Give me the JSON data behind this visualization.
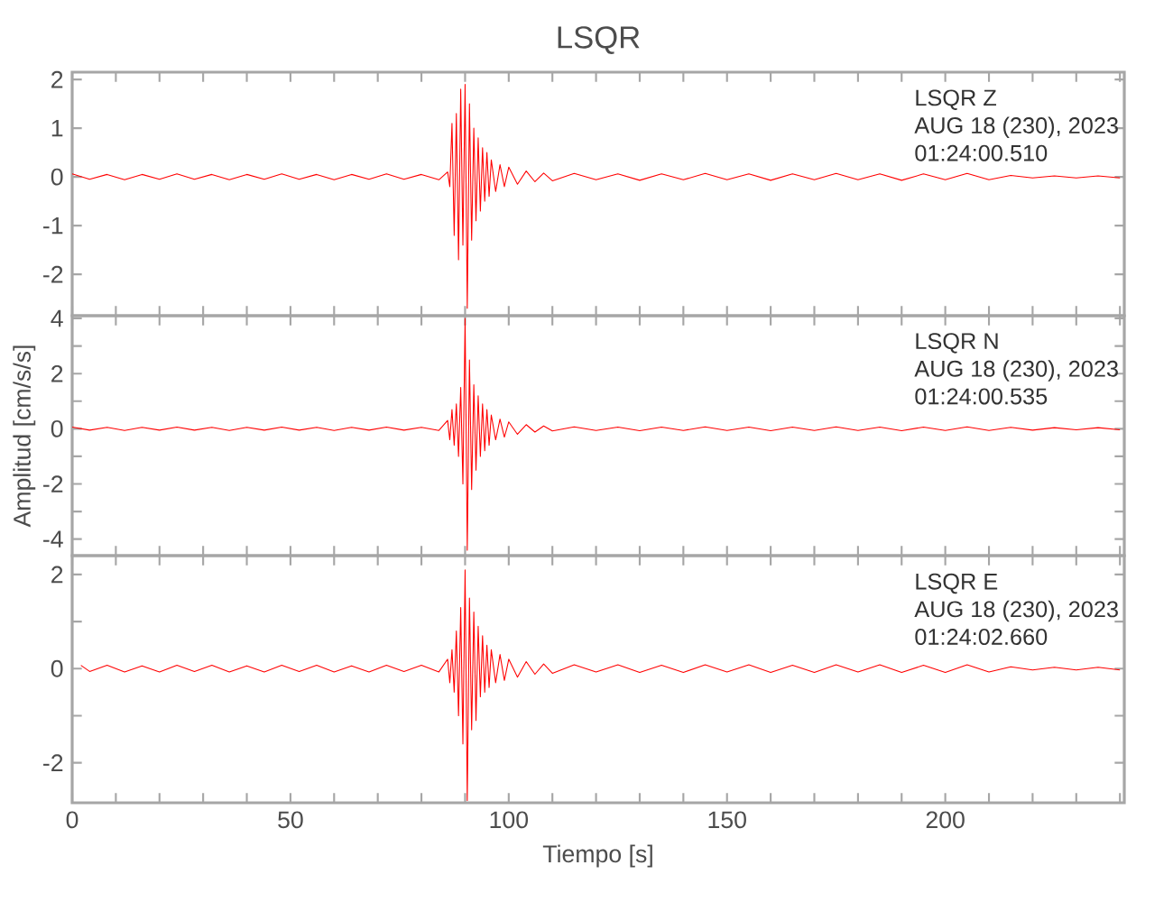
{
  "chart_data": [
    {
      "type": "line",
      "title": "LSQR",
      "xlim": [
        0,
        241
      ],
      "ylim": [
        -2.85,
        2.15
      ],
      "xticks": [
        0,
        {
          "value": 10,
          "label": null
        },
        {
          "value": 20,
          "label": null
        },
        {
          "value": 30,
          "label": null
        },
        {
          "value": 40,
          "label": null
        },
        50,
        {
          "value": 60,
          "label": null
        },
        {
          "value": 70,
          "label": null
        },
        {
          "value": 80,
          "label": null
        },
        {
          "value": 90,
          "label": null
        },
        100,
        {
          "value": 110,
          "label": null
        },
        {
          "value": 120,
          "label": null
        },
        {
          "value": 130,
          "label": null
        },
        {
          "value": 140,
          "label": null
        },
        150,
        {
          "value": 160,
          "label": null
        },
        {
          "value": 170,
          "label": null
        },
        {
          "value": 180,
          "label": null
        },
        {
          "value": 190,
          "label": null
        },
        200,
        {
          "value": 210,
          "label": null
        },
        {
          "value": 220,
          "label": null
        },
        {
          "value": 230,
          "label": null
        },
        {
          "value": 240,
          "label": null
        }
      ],
      "yticks": [
        -2,
        -1,
        0,
        1,
        2
      ],
      "tick_labels": "y",
      "annotations": [
        "LSQR   Z",
        "AUG 18 (230), 2023",
        "01:24:00.510"
      ],
      "series": [
        {
          "color": "#ff0000",
          "x": [
            0,
            4,
            8,
            12,
            16,
            20,
            24,
            28,
            32,
            36,
            40,
            44,
            48,
            52,
            56,
            60,
            64,
            68,
            72,
            76,
            80,
            84,
            86,
            86.5,
            87,
            87.5,
            88,
            88.5,
            89,
            89.5,
            90,
            90.5,
            91,
            91.5,
            92,
            92.5,
            93,
            93.5,
            94,
            94.5,
            95,
            95.5,
            96,
            97,
            98,
            99,
            100,
            102,
            104,
            106,
            108,
            110,
            115,
            120,
            125,
            130,
            135,
            140,
            145,
            150,
            155,
            160,
            165,
            170,
            175,
            180,
            185,
            190,
            195,
            200,
            205,
            210,
            215,
            220,
            225,
            230,
            235,
            240
          ],
          "values": [
            0.06,
            -0.05,
            0.05,
            -0.06,
            0.05,
            -0.05,
            0.06,
            -0.05,
            0.05,
            -0.06,
            0.05,
            -0.05,
            0.06,
            -0.05,
            0.05,
            -0.06,
            0.05,
            -0.05,
            0.06,
            -0.05,
            0.05,
            -0.06,
            0.1,
            -0.2,
            1.1,
            -1.2,
            1.3,
            -1.7,
            1.8,
            -1.4,
            1.9,
            -2.7,
            1.5,
            -1.3,
            1.0,
            -0.9,
            0.8,
            -0.7,
            0.6,
            -0.5,
            0.5,
            -0.4,
            0.35,
            -0.3,
            0.25,
            -0.2,
            0.2,
            -0.15,
            0.12,
            -0.1,
            0.08,
            -0.08,
            0.07,
            -0.06,
            0.06,
            -0.07,
            0.06,
            -0.06,
            0.07,
            -0.06,
            0.06,
            -0.07,
            0.06,
            -0.06,
            0.07,
            -0.06,
            0.06,
            -0.07,
            0.06,
            -0.06,
            0.07,
            -0.06,
            0.03,
            -0.02,
            0.02,
            -0.02,
            0.02,
            -0.02
          ]
        }
      ]
    },
    {
      "type": "line",
      "ylabel": "Amplitud [cm/s/s]",
      "xlim": [
        0,
        241
      ],
      "ylim": [
        -4.6,
        4.1
      ],
      "xticks": [
        0,
        {
          "value": 10,
          "label": null
        },
        {
          "value": 20,
          "label": null
        },
        {
          "value": 30,
          "label": null
        },
        {
          "value": 40,
          "label": null
        },
        50,
        {
          "value": 60,
          "label": null
        },
        {
          "value": 70,
          "label": null
        },
        {
          "value": 80,
          "label": null
        },
        {
          "value": 90,
          "label": null
        },
        100,
        {
          "value": 110,
          "label": null
        },
        {
          "value": 120,
          "label": null
        },
        {
          "value": 130,
          "label": null
        },
        {
          "value": 140,
          "label": null
        },
        150,
        {
          "value": 160,
          "label": null
        },
        {
          "value": 170,
          "label": null
        },
        {
          "value": 180,
          "label": null
        },
        {
          "value": 190,
          "label": null
        },
        200,
        {
          "value": 210,
          "label": null
        },
        {
          "value": 220,
          "label": null
        },
        {
          "value": 230,
          "label": null
        },
        {
          "value": 240,
          "label": null
        }
      ],
      "yticks": [
        -4,
        {
          "value": -3,
          "label": null
        },
        -2,
        {
          "value": -1,
          "label": null
        },
        0,
        {
          "value": 1,
          "label": null
        },
        2,
        {
          "value": 3,
          "label": null
        },
        4
      ],
      "tick_labels": "y",
      "annotations": [
        "LSQR   N",
        "AUG 18 (230), 2023",
        "01:24:00.535"
      ],
      "series": [
        {
          "color": "#ff0000",
          "x": [
            0,
            4,
            8,
            12,
            16,
            20,
            24,
            28,
            32,
            36,
            40,
            44,
            48,
            52,
            56,
            60,
            64,
            68,
            72,
            76,
            80,
            84,
            86,
            86.5,
            87,
            87.5,
            88,
            88.5,
            89,
            89.5,
            90,
            90.5,
            91,
            91.5,
            92,
            92.5,
            93,
            93.5,
            94,
            94.5,
            95,
            95.5,
            96,
            97,
            98,
            99,
            100,
            102,
            104,
            106,
            108,
            110,
            115,
            120,
            125,
            130,
            135,
            140,
            145,
            150,
            155,
            160,
            165,
            170,
            175,
            180,
            185,
            190,
            195,
            200,
            205,
            210,
            215,
            220,
            225,
            230,
            235,
            240
          ],
          "values": [
            0.06,
            -0.05,
            0.05,
            -0.06,
            0.05,
            -0.05,
            0.06,
            -0.05,
            0.05,
            -0.06,
            0.05,
            -0.05,
            0.06,
            -0.05,
            0.05,
            -0.06,
            0.05,
            -0.05,
            0.06,
            -0.05,
            0.05,
            -0.06,
            0.3,
            -0.4,
            0.7,
            -0.6,
            0.9,
            -1.0,
            1.5,
            -2.0,
            4.0,
            -4.4,
            2.5,
            -2.2,
            1.6,
            -1.5,
            1.2,
            -1.0,
            0.9,
            -0.8,
            0.7,
            -0.6,
            0.5,
            -0.4,
            0.35,
            -0.3,
            0.25,
            -0.2,
            0.15,
            -0.12,
            0.1,
            -0.08,
            0.07,
            -0.06,
            0.06,
            -0.07,
            0.06,
            -0.06,
            0.07,
            -0.06,
            0.06,
            -0.07,
            0.06,
            -0.06,
            0.07,
            -0.06,
            0.06,
            -0.07,
            0.06,
            -0.06,
            0.07,
            -0.06,
            0.05,
            -0.05,
            0.04,
            -0.04,
            0.04,
            -0.04
          ]
        }
      ]
    },
    {
      "type": "line",
      "xlabel": "Tiempo [s]",
      "xlim": [
        0,
        241
      ],
      "ylim": [
        -2.85,
        2.4
      ],
      "xticks": [
        0,
        {
          "value": 10,
          "label": null
        },
        {
          "value": 20,
          "label": null
        },
        {
          "value": 30,
          "label": null
        },
        {
          "value": 40,
          "label": null
        },
        50,
        {
          "value": 60,
          "label": null
        },
        {
          "value": 70,
          "label": null
        },
        {
          "value": 80,
          "label": null
        },
        {
          "value": 90,
          "label": null
        },
        100,
        {
          "value": 110,
          "label": null
        },
        {
          "value": 120,
          "label": null
        },
        {
          "value": 130,
          "label": null
        },
        {
          "value": 140,
          "label": null
        },
        150,
        {
          "value": 160,
          "label": null
        },
        {
          "value": 170,
          "label": null
        },
        {
          "value": 180,
          "label": null
        },
        {
          "value": 190,
          "label": null
        },
        200,
        {
          "value": 210,
          "label": null
        },
        {
          "value": 220,
          "label": null
        },
        {
          "value": 230,
          "label": null
        },
        {
          "value": 240,
          "label": null
        }
      ],
      "yticks": [
        -2,
        {
          "value": -1,
          "label": null
        },
        0,
        {
          "value": 1,
          "label": null
        },
        2
      ],
      "annotations": [
        "LSQR   E",
        "AUG 18 (230), 2023",
        "01:24:02.660"
      ],
      "series": [
        {
          "color": "#ff0000",
          "x": [
            2,
            4,
            8,
            12,
            16,
            20,
            24,
            28,
            32,
            36,
            40,
            44,
            48,
            52,
            56,
            60,
            64,
            68,
            72,
            76,
            80,
            84,
            86,
            86.5,
            87,
            87.5,
            88,
            88.5,
            89,
            89.5,
            90,
            90.5,
            91,
            91.5,
            92,
            92.5,
            93,
            93.5,
            94,
            94.5,
            95,
            95.5,
            96,
            97,
            98,
            99,
            100,
            102,
            104,
            106,
            108,
            110,
            115,
            120,
            125,
            130,
            135,
            140,
            145,
            150,
            155,
            160,
            165,
            170,
            175,
            180,
            185,
            190,
            195,
            200,
            205,
            210,
            215,
            220,
            225,
            230,
            235,
            240
          ],
          "values": [
            0.07,
            -0.06,
            0.07,
            -0.07,
            0.06,
            -0.07,
            0.07,
            -0.06,
            0.07,
            -0.07,
            0.06,
            -0.07,
            0.07,
            -0.06,
            0.07,
            -0.07,
            0.06,
            -0.07,
            0.07,
            -0.06,
            0.07,
            -0.07,
            0.2,
            -0.3,
            0.4,
            -0.5,
            0.8,
            -1.0,
            1.3,
            -1.6,
            2.1,
            -2.8,
            1.5,
            -1.3,
            1.2,
            -1.1,
            0.9,
            -0.6,
            0.7,
            -0.5,
            0.5,
            -0.4,
            0.4,
            -0.3,
            0.3,
            -0.25,
            0.2,
            -0.18,
            0.15,
            -0.12,
            0.1,
            -0.1,
            0.08,
            -0.07,
            0.08,
            -0.08,
            0.07,
            -0.08,
            0.08,
            -0.07,
            0.08,
            -0.08,
            0.07,
            -0.08,
            0.08,
            -0.07,
            0.08,
            -0.08,
            0.07,
            -0.08,
            0.08,
            -0.07,
            0.04,
            -0.03,
            0.03,
            -0.03,
            0.03,
            -0.03
          ]
        }
      ]
    }
  ]
}
